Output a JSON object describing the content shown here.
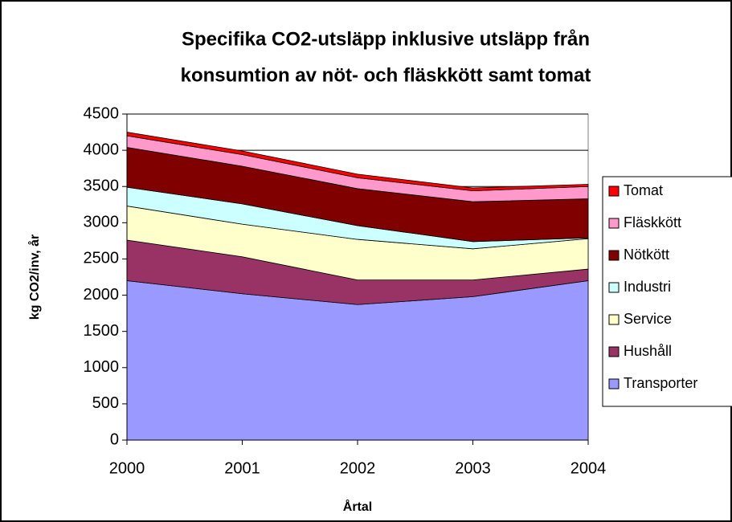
{
  "chart_data": {
    "type": "stacked_area",
    "title": [
      "Specifika CO2-utsläpp inklusive utsläpp från",
      "konsumtion av nöt- och fläskkött samt tomat"
    ],
    "x_label": "Årtal",
    "y_label": "kg CO2/inv, år",
    "x": [
      2000,
      2001,
      2002,
      2003,
      2004
    ],
    "xlim": [
      2000,
      2004
    ],
    "xticks": [
      2000,
      2001,
      2002,
      2003,
      2004
    ],
    "ylim": [
      0,
      4500
    ],
    "yticks": [
      0,
      500,
      1000,
      1500,
      2000,
      2500,
      3000,
      3500,
      4000,
      4500
    ],
    "grid": true,
    "legend": "right",
    "series": [
      {
        "name": "Transporter",
        "color": "#9999ff",
        "values": [
          2200,
          2020,
          1870,
          1980,
          2200
        ]
      },
      {
        "name": "Hushåll",
        "color": "#993366",
        "values": [
          560,
          510,
          340,
          230,
          160
        ]
      },
      {
        "name": "Service",
        "color": "#ffffcc",
        "values": [
          470,
          450,
          560,
          430,
          420
        ]
      },
      {
        "name": "Industri",
        "color": "#ccffff",
        "values": [
          260,
          280,
          190,
          100,
          10
        ]
      },
      {
        "name": "Nötkött",
        "color": "#800000",
        "values": [
          550,
          520,
          510,
          550,
          540
        ]
      },
      {
        "name": "Fläskkött",
        "color": "#ff99cc",
        "values": [
          160,
          160,
          150,
          150,
          170
        ]
      },
      {
        "name": "Tomat",
        "color": "#ff0000",
        "values": [
          50,
          50,
          50,
          40,
          30
        ]
      }
    ]
  }
}
